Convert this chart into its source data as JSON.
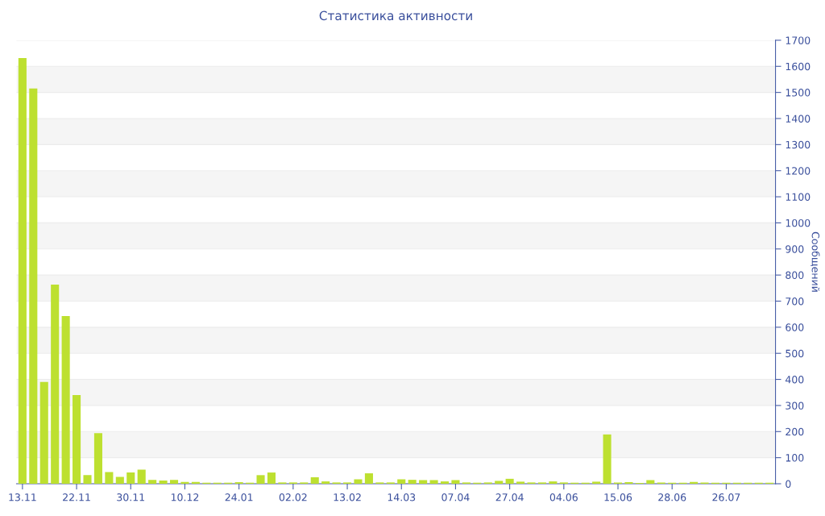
{
  "chart_data": {
    "type": "bar",
    "title": "Статистика активности",
    "y2label": "Сообщений",
    "categories": [
      "13.11",
      null,
      null,
      null,
      null,
      "22.11",
      null,
      null,
      null,
      null,
      "30.11",
      null,
      null,
      null,
      null,
      "10.12",
      null,
      null,
      null,
      null,
      "24.01",
      null,
      null,
      null,
      null,
      "02.02",
      null,
      null,
      null,
      null,
      "13.02",
      null,
      null,
      null,
      null,
      "14.03",
      null,
      null,
      null,
      null,
      "07.04",
      null,
      null,
      null,
      null,
      "27.04",
      null,
      null,
      null,
      null,
      "04.06",
      null,
      null,
      null,
      null,
      "15.06",
      null,
      null,
      null,
      null,
      "28.06",
      null,
      null,
      null,
      null,
      "26.07",
      null,
      null,
      null,
      null
    ],
    "series": [
      {
        "color": "#bde030",
        "axis": "y2",
        "values": [
          1632,
          1515,
          390,
          763,
          643,
          340,
          33,
          194,
          45,
          26,
          43,
          54,
          15,
          12,
          15,
          7,
          7,
          4,
          4,
          4,
          6,
          4,
          33,
          43,
          5,
          5,
          5,
          25,
          9,
          5,
          5,
          17,
          40,
          5,
          5,
          17,
          15,
          14,
          14,
          9,
          14,
          5,
          4,
          5,
          11,
          19,
          8,
          5,
          5,
          9,
          5,
          4,
          4,
          8,
          189,
          5,
          6,
          3,
          14,
          5,
          4,
          4,
          7,
          5,
          4,
          4,
          4,
          4,
          4,
          4
        ]
      }
    ],
    "y2lim": [
      0,
      1700
    ],
    "y2ticks": [
      0,
      100,
      200,
      300,
      400,
      500,
      600,
      700,
      800,
      900,
      1000,
      1100,
      1200,
      1300,
      1400,
      1500,
      1600,
      1700
    ],
    "grid": "y",
    "legend": false
  }
}
